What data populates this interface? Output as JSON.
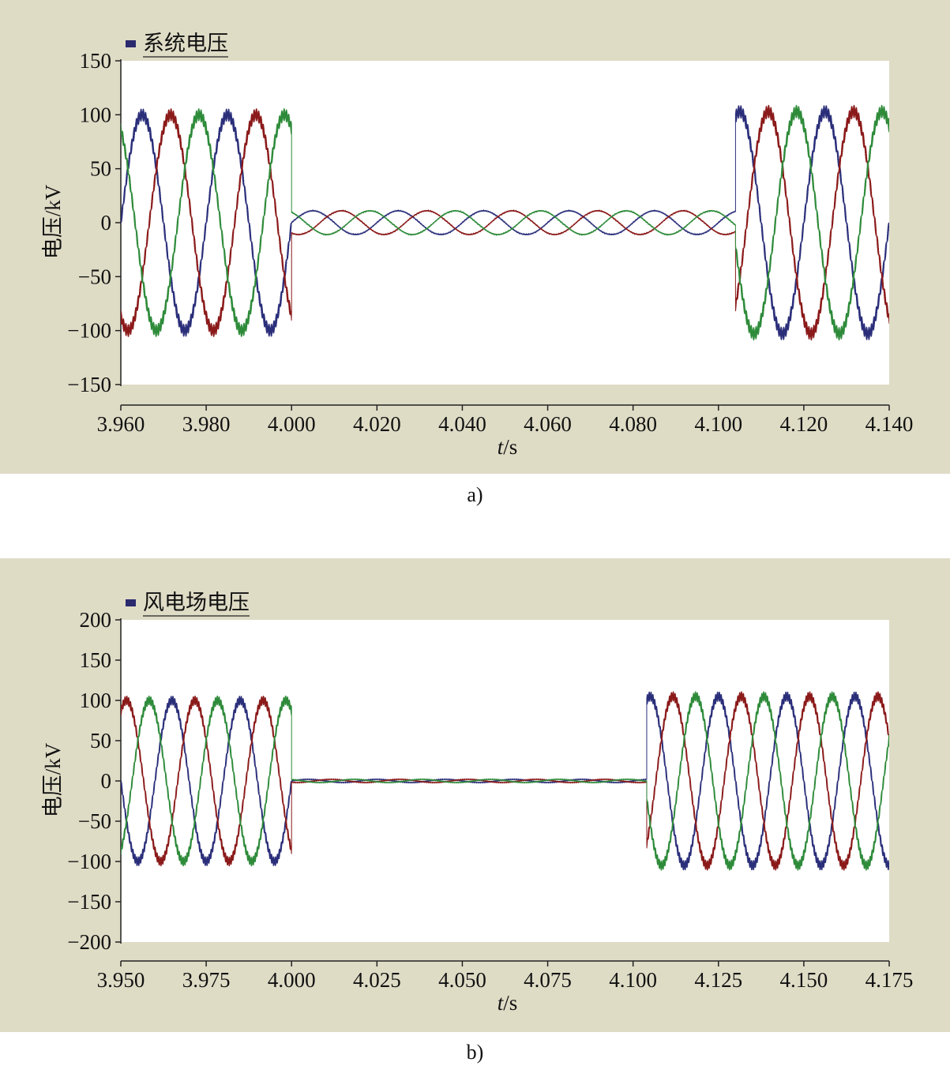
{
  "chart_data": [
    {
      "type": "line",
      "legend": "系统电压",
      "legend_color": "#2a2a6e",
      "xlabel_italic": "t",
      "xlabel_unit": "/s",
      "ylabel": "电压/kV",
      "xlim": [
        3.96,
        4.14
      ],
      "ylim": [
        -150,
        150
      ],
      "xticks": [
        3.96,
        3.98,
        4.0,
        4.02,
        4.04,
        4.06,
        4.08,
        4.1,
        4.12,
        4.14
      ],
      "xtick_labels": [
        "3.960",
        "3.980",
        "4.000",
        "4.020",
        "4.040",
        "4.060",
        "4.080",
        "4.100",
        "4.120",
        "4.140"
      ],
      "yticks": [
        150,
        100,
        50,
        0,
        -50,
        -100,
        -150
      ],
      "ytick_labels": [
        "150",
        "100",
        "50",
        "0",
        "−50",
        "−100",
        "−150"
      ],
      "caption": "a)",
      "series": [
        {
          "color": "#2b2f7a",
          "phase_deg": 0
        },
        {
          "color": "#8b1a1a",
          "phase_deg": -120
        },
        {
          "color": "#2e8b3a",
          "phase_deg": 120
        }
      ],
      "segments": [
        {
          "t0": 3.96,
          "t1": 4.0,
          "amplitude": 100,
          "frequency": 50
        },
        {
          "t0": 4.0,
          "t1": 4.104,
          "amplitude": 11,
          "frequency": 50
        },
        {
          "t0": 4.104,
          "t1": 4.14,
          "amplitude": 103,
          "frequency": 50
        }
      ]
    },
    {
      "type": "line",
      "legend": "风电场电压",
      "legend_color": "#2a2a6e",
      "xlabel_italic": "t",
      "xlabel_unit": "/s",
      "ylabel": "电压/kV",
      "xlim": [
        3.95,
        4.175
      ],
      "ylim": [
        -200,
        200
      ],
      "xticks": [
        3.95,
        3.975,
        4.0,
        4.025,
        4.05,
        4.075,
        4.1,
        4.125,
        4.15,
        4.175
      ],
      "xtick_labels": [
        "3.950",
        "3.975",
        "4.000",
        "4.025",
        "4.050",
        "4.075",
        "4.100",
        "4.125",
        "4.150",
        "4.175"
      ],
      "yticks": [
        200,
        150,
        100,
        50,
        0,
        -50,
        -100,
        -150,
        -200
      ],
      "ytick_labels": [
        "200",
        "150",
        "100",
        "50",
        "0",
        "−50",
        "−100",
        "−150",
        "−200"
      ],
      "caption": "b)",
      "series": [
        {
          "color": "#2b2f7a",
          "phase_deg": 0
        },
        {
          "color": "#8b1a1a",
          "phase_deg": -120
        },
        {
          "color": "#2e8b3a",
          "phase_deg": 120
        }
      ],
      "segments": [
        {
          "t0": 3.95,
          "t1": 4.0,
          "amplitude": 100,
          "frequency": 50
        },
        {
          "t0": 4.0,
          "t1": 4.104,
          "amplitude": 2,
          "frequency": 50
        },
        {
          "t0": 4.104,
          "t1": 4.175,
          "amplitude": 105,
          "frequency": 50
        }
      ]
    }
  ]
}
